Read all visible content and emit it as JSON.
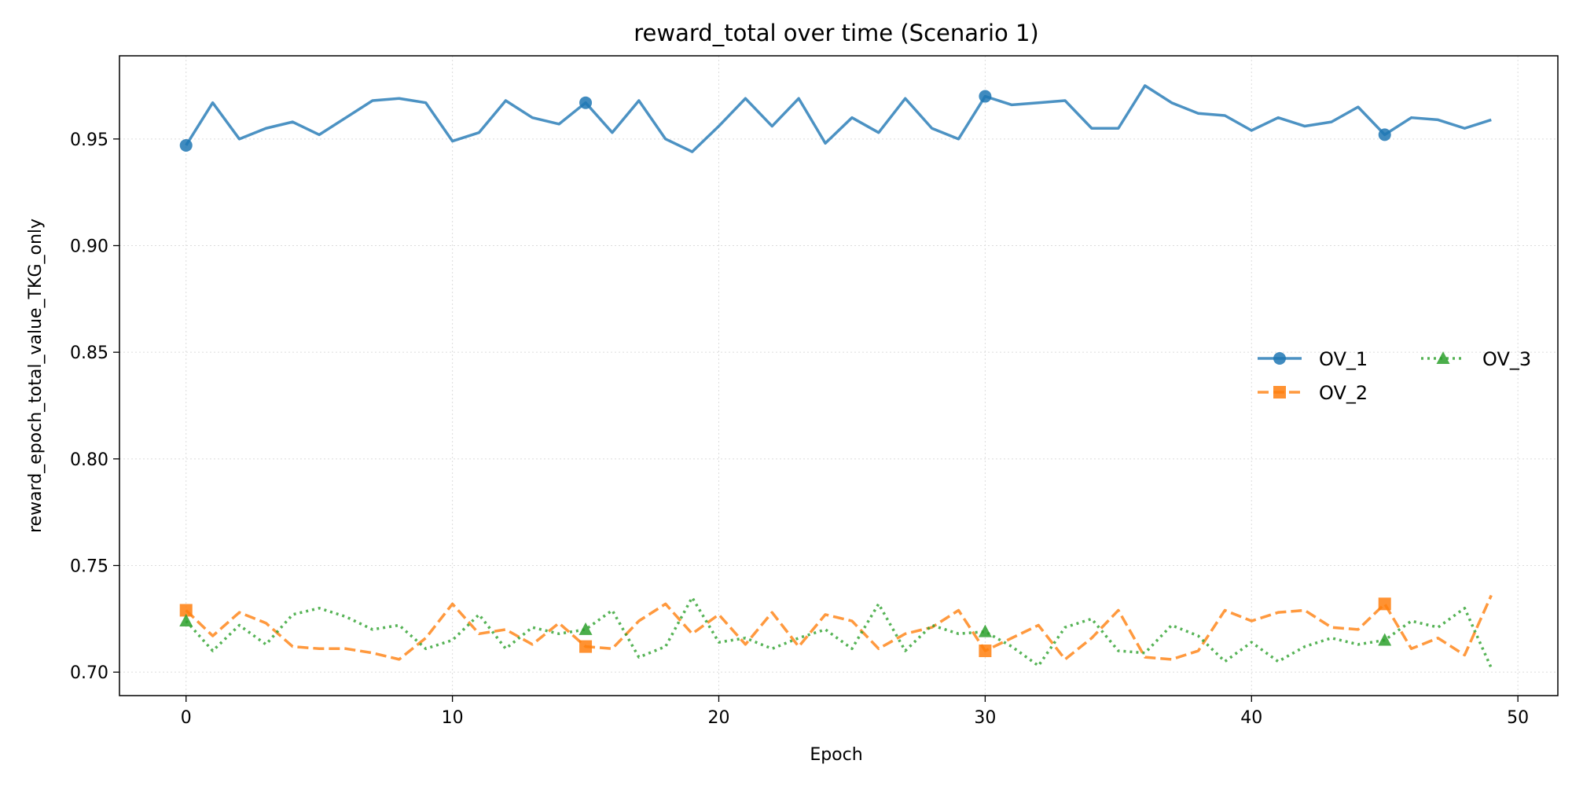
{
  "chart_data": {
    "type": "line",
    "title": "reward_total over time (Scenario 1)",
    "xlabel": "Epoch",
    "ylabel": "reward_epoch_total_value_TKG_only",
    "xlim": [
      -2.5,
      51.5
    ],
    "ylim": [
      0.689,
      0.989
    ],
    "xticks": [
      0,
      10,
      20,
      30,
      40,
      50
    ],
    "yticks": [
      0.7,
      0.75,
      0.8,
      0.85,
      0.9,
      0.95
    ],
    "xtick_labels": [
      "0",
      "10",
      "20",
      "30",
      "40",
      "50"
    ],
    "ytick_labels": [
      "0.70",
      "0.75",
      "0.80",
      "0.85",
      "0.90",
      "0.95"
    ],
    "grid": true,
    "legend_placement": "center-right",
    "x": [
      0,
      1,
      2,
      3,
      4,
      5,
      6,
      7,
      8,
      9,
      10,
      11,
      12,
      13,
      14,
      15,
      16,
      17,
      18,
      19,
      20,
      21,
      22,
      23,
      24,
      25,
      26,
      27,
      28,
      29,
      30,
      31,
      32,
      33,
      34,
      35,
      36,
      37,
      38,
      39,
      40,
      41,
      42,
      43,
      44,
      45,
      46,
      47,
      48,
      49
    ],
    "series": [
      {
        "name": "OV_1",
        "color": "#1f77b4",
        "marker": "circle",
        "linestyle": "solid",
        "marker_every": 15,
        "values": [
          0.947,
          0.967,
          0.95,
          0.955,
          0.958,
          0.952,
          0.96,
          0.968,
          0.969,
          0.967,
          0.949,
          0.953,
          0.968,
          0.96,
          0.957,
          0.967,
          0.953,
          0.968,
          0.95,
          0.944,
          0.956,
          0.969,
          0.956,
          0.969,
          0.948,
          0.96,
          0.953,
          0.969,
          0.955,
          0.95,
          0.97,
          0.966,
          0.967,
          0.968,
          0.955,
          0.955,
          0.975,
          0.967,
          0.962,
          0.961,
          0.954,
          0.96,
          0.956,
          0.958,
          0.965,
          0.952,
          0.96,
          0.959,
          0.955,
          0.959
        ]
      },
      {
        "name": "OV_2",
        "color": "#ff7f0e",
        "marker": "square",
        "linestyle": "dashed",
        "marker_every": 15,
        "values": [
          0.729,
          0.717,
          0.728,
          0.723,
          0.712,
          0.711,
          0.711,
          0.709,
          0.706,
          0.716,
          0.732,
          0.718,
          0.72,
          0.713,
          0.723,
          0.712,
          0.711,
          0.724,
          0.732,
          0.718,
          0.727,
          0.713,
          0.728,
          0.712,
          0.727,
          0.724,
          0.711,
          0.718,
          0.721,
          0.729,
          0.71,
          0.716,
          0.722,
          0.706,
          0.716,
          0.729,
          0.707,
          0.706,
          0.71,
          0.729,
          0.724,
          0.728,
          0.729,
          0.721,
          0.72,
          0.732,
          0.711,
          0.716,
          0.708,
          0.736
        ]
      },
      {
        "name": "OV_3",
        "color": "#2ca02c",
        "marker": "triangle",
        "linestyle": "dotted",
        "marker_every": 15,
        "values": [
          0.724,
          0.71,
          0.722,
          0.713,
          0.727,
          0.73,
          0.726,
          0.72,
          0.722,
          0.711,
          0.715,
          0.727,
          0.711,
          0.721,
          0.718,
          0.72,
          0.729,
          0.707,
          0.712,
          0.735,
          0.714,
          0.716,
          0.711,
          0.716,
          0.72,
          0.711,
          0.732,
          0.71,
          0.722,
          0.718,
          0.719,
          0.712,
          0.703,
          0.721,
          0.725,
          0.71,
          0.709,
          0.722,
          0.717,
          0.705,
          0.714,
          0.705,
          0.712,
          0.716,
          0.713,
          0.715,
          0.724,
          0.721,
          0.73,
          0.702
        ]
      }
    ]
  }
}
